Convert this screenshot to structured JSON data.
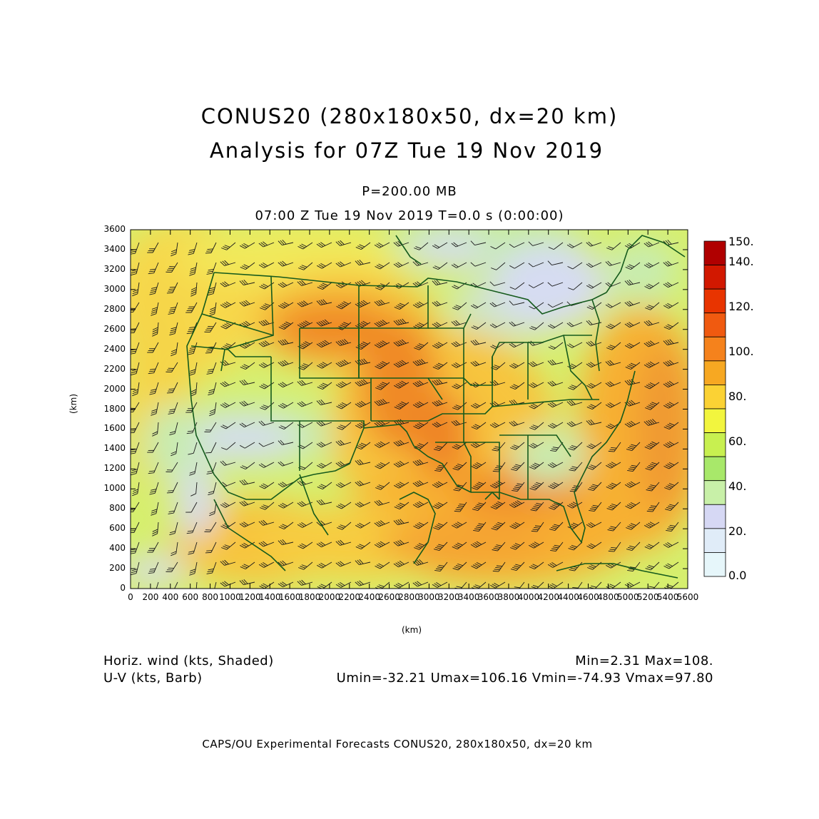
{
  "title_line1": "CONUS20 (280x180x50, dx=20 km)",
  "title_line2": "Analysis for 07Z Tue 19 Nov 2019",
  "level_label": "P=200.00 MB",
  "valid_time": "07:00 Z Tue 19 Nov 2019    T=0.0 s (0:00:00)",
  "y_axis_label": "(km)",
  "x_axis_label": "(km)",
  "y_ticks": [
    "0",
    "200",
    "400",
    "600",
    "800",
    "1000",
    "1200",
    "1400",
    "1600",
    "1800",
    "2000",
    "2200",
    "2400",
    "2600",
    "2800",
    "3000",
    "3200",
    "3400",
    "3600"
  ],
  "x_ticks": [
    "0",
    "200",
    "400",
    "600",
    "800",
    "1000",
    "1200",
    "1400",
    "1600",
    "1800",
    "2000",
    "2200",
    "2400",
    "2600",
    "2800",
    "3000",
    "3200",
    "3400",
    "3600",
    "3800",
    "4000",
    "4200",
    "4400",
    "4600",
    "4800",
    "5000",
    "5200",
    "5400",
    "5600"
  ],
  "colorbar": {
    "labels": [
      "150.",
      "140.",
      "120.",
      "100.",
      "80.",
      "60.",
      "40.",
      "20.",
      "0.0"
    ],
    "colors": [
      "#b00000",
      "#d21800",
      "#e83400",
      "#f05a10",
      "#f5821c",
      "#f7a822",
      "#fbd234",
      "#f2f53e",
      "#c8f050",
      "#a8e86a",
      "#c8f0a8",
      "#d6d8f4",
      "#e0ecf8",
      "#e6f6fa"
    ]
  },
  "field_legend": {
    "shaded": "Horiz. wind (kts, Shaded)",
    "barb": "U-V (kts, Barb)",
    "minmax": "Min=2.31  Max=108.",
    "component_range": "Umin=-32.21  Umax=106.16  Vmin=-74.93  Vmax=97.80"
  },
  "footer": "CAPS/OU Experimental Forecasts   CONUS20, 280x180x50, dx=20 km"
}
